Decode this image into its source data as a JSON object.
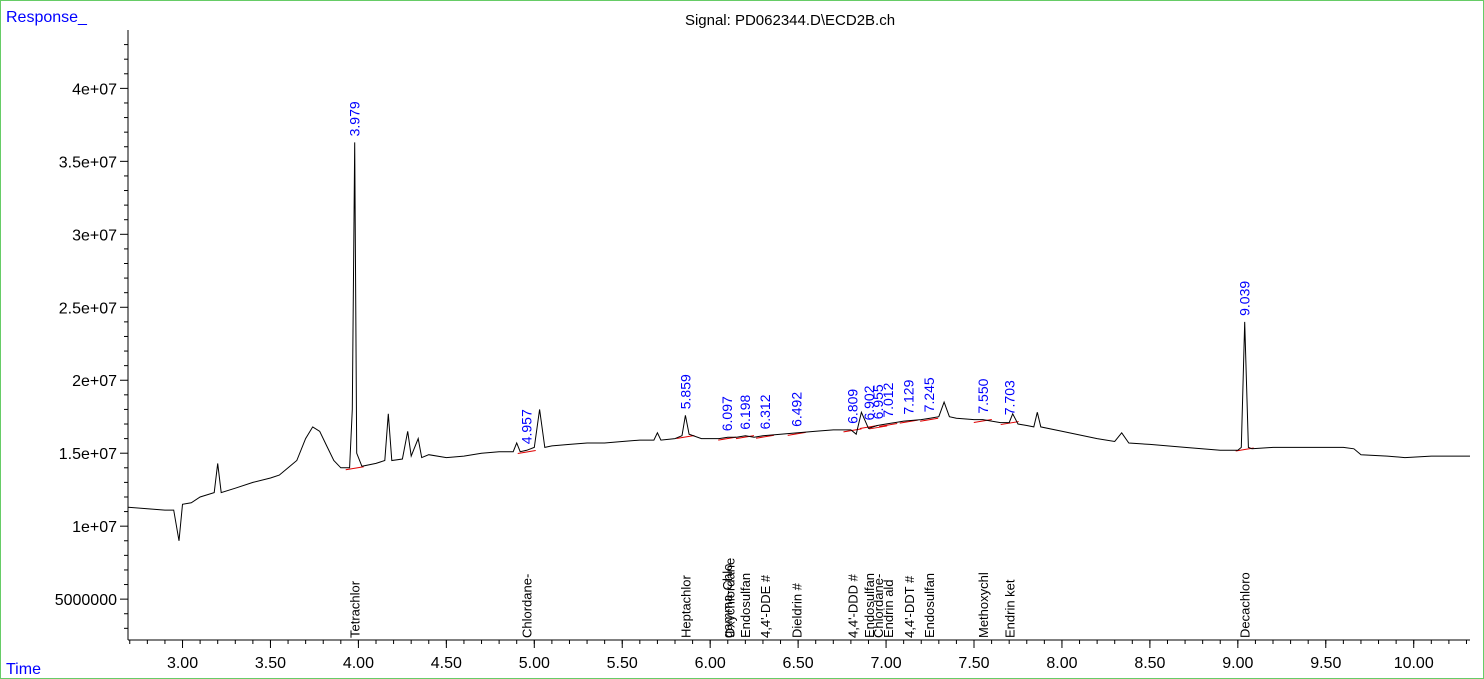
{
  "chart_data": {
    "type": "line",
    "title": "Signal: PD062344.D\\ECD2B.ch",
    "ylabel": "Response_",
    "xlabel": "Time",
    "xlim": [
      2.69,
      10.32
    ],
    "ylim": [
      2200000,
      44000000
    ],
    "x_ticks": [
      "3.00",
      "3.50",
      "4.00",
      "4.50",
      "5.00",
      "5.50",
      "6.00",
      "6.50",
      "7.00",
      "7.50",
      "8.00",
      "8.50",
      "9.00",
      "9.50",
      "10.00"
    ],
    "y_ticks": [
      "5000000",
      "1e+07",
      "1.5e+07",
      "2e+07",
      "2.5e+07",
      "3e+07",
      "3.5e+07",
      "4e+07"
    ],
    "peak_labels": [
      {
        "x": 3.979,
        "text": "3.979"
      },
      {
        "x": 4.957,
        "text": "4.957"
      },
      {
        "x": 5.859,
        "text": "5.859"
      },
      {
        "x": 6.097,
        "text": "6.097"
      },
      {
        "x": 6.198,
        "text": "6.198"
      },
      {
        "x": 6.312,
        "text": "6.312"
      },
      {
        "x": 6.492,
        "text": "6.492"
      },
      {
        "x": 6.809,
        "text": "6.809"
      },
      {
        "x": 6.902,
        "text": "6.902"
      },
      {
        "x": 6.955,
        "text": "6.955"
      },
      {
        "x": 7.012,
        "text": "7.012"
      },
      {
        "x": 7.129,
        "text": "7.129"
      },
      {
        "x": 7.245,
        "text": "7.245"
      },
      {
        "x": 7.55,
        "text": "7.550"
      },
      {
        "x": 7.703,
        "text": "7.703"
      },
      {
        "x": 9.039,
        "text": "9.039"
      }
    ],
    "compound_labels": [
      {
        "x": 3.979,
        "text": "Tetrachlor"
      },
      {
        "x": 4.957,
        "text": "Chlordane-"
      },
      {
        "x": 5.859,
        "text": "Heptachlor"
      },
      {
        "x": 6.097,
        "text": "gamma-Chlo"
      },
      {
        "x": 6.11,
        "text": "Oxychlordane"
      },
      {
        "x": 6.198,
        "text": "Endosulfan"
      },
      {
        "x": 6.312,
        "text": "4,4'-DDE #"
      },
      {
        "x": 6.492,
        "text": "Dieldrin #"
      },
      {
        "x": 6.809,
        "text": "4,4'-DDD #"
      },
      {
        "x": 6.902,
        "text": "Endosulfan"
      },
      {
        "x": 6.955,
        "text": "Chlordane-"
      },
      {
        "x": 7.012,
        "text": "Endrin ald"
      },
      {
        "x": 7.129,
        "text": "4,4'-DDT #"
      },
      {
        "x": 7.245,
        "text": "Endosulfan"
      },
      {
        "x": 7.55,
        "text": "Methoxychl"
      },
      {
        "x": 7.703,
        "text": "Endrin ket"
      },
      {
        "x": 9.039,
        "text": "Decachloro"
      }
    ],
    "series": [
      {
        "x": [
          2.69,
          2.8,
          2.9,
          2.95,
          2.98,
          3.0,
          3.05,
          3.1,
          3.18,
          3.2,
          3.22,
          3.3,
          3.4,
          3.5,
          3.55,
          3.6,
          3.65,
          3.7,
          3.74,
          3.78,
          3.82,
          3.86,
          3.9,
          3.95,
          3.965,
          3.979,
          3.99,
          4.02,
          4.1,
          4.15,
          4.17,
          4.19,
          4.25,
          4.28,
          4.3,
          4.34,
          4.36,
          4.4,
          4.5,
          4.6,
          4.7,
          4.8,
          4.88,
          4.9,
          4.92,
          4.957,
          5.0,
          5.03,
          5.06,
          5.1,
          5.2,
          5.3,
          5.4,
          5.5,
          5.6,
          5.68,
          5.7,
          5.72,
          5.8,
          5.84,
          5.859,
          5.88,
          5.95,
          6.0,
          6.05,
          6.1,
          6.15,
          6.2,
          6.25,
          6.3,
          6.4,
          6.5,
          6.6,
          6.7,
          6.8,
          6.83,
          6.86,
          6.9,
          6.95,
          7.0,
          7.05,
          7.1,
          7.2,
          7.25,
          7.3,
          7.33,
          7.36,
          7.4,
          7.5,
          7.55,
          7.6,
          7.65,
          7.7,
          7.72,
          7.75,
          7.8,
          7.84,
          7.86,
          7.88,
          8.0,
          8.2,
          8.3,
          8.34,
          8.38,
          8.5,
          8.7,
          8.9,
          9.0,
          9.02,
          9.039,
          9.06,
          9.08,
          9.2,
          9.4,
          9.6,
          9.66,
          9.7,
          9.85,
          9.95,
          10.1,
          10.32
        ],
        "y": [
          11300000,
          11200000,
          11100000,
          11100000,
          9000000,
          11500000,
          11600000,
          12000000,
          12300000,
          14300000,
          12300000,
          12600000,
          13000000,
          13300000,
          13500000,
          14000000,
          14500000,
          16000000,
          16800000,
          16500000,
          15500000,
          14500000,
          14000000,
          14000000,
          18000000,
          36300000,
          15000000,
          14100000,
          14300000,
          14500000,
          17700000,
          14500000,
          14600000,
          16500000,
          14800000,
          16000000,
          14700000,
          14900000,
          14700000,
          14800000,
          15000000,
          15100000,
          15100000,
          15700000,
          15100000,
          15200000,
          15400000,
          18000000,
          15400000,
          15500000,
          15600000,
          15700000,
          15700000,
          15800000,
          15900000,
          15900000,
          16400000,
          15900000,
          16000000,
          16200000,
          17600000,
          16300000,
          16000000,
          16000000,
          16000000,
          16100000,
          16100000,
          16200000,
          16100000,
          16200000,
          16300000,
          16400000,
          16500000,
          16600000,
          16600000,
          16300000,
          17800000,
          16700000,
          16900000,
          17000000,
          17100000,
          17200000,
          17300000,
          17400000,
          17500000,
          18500000,
          17500000,
          17400000,
          17300000,
          17300000,
          17200000,
          17100000,
          17100000,
          17700000,
          17000000,
          16900000,
          16800000,
          17800000,
          16800000,
          16500000,
          16000000,
          15800000,
          16400000,
          15700000,
          15600000,
          15400000,
          15200000,
          15200000,
          15400000,
          24000000,
          15400000,
          15300000,
          15400000,
          15400000,
          15400000,
          15300000,
          14900000,
          14800000,
          14700000,
          14800000,
          14800000
        ]
      }
    ]
  }
}
